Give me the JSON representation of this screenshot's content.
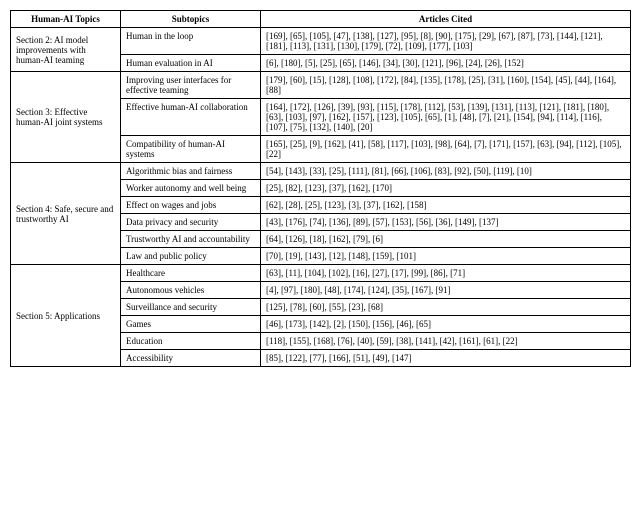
{
  "headers": {
    "topics": "Human-AI Topics",
    "subtopics": "Subtopics",
    "articles": "Articles Cited"
  },
  "sections": [
    {
      "topic": "Section 2: AI model improvements with human-AI teaming",
      "rows": [
        {
          "sub": "Human in the loop",
          "cites": "[169], [65], [105], [47], [138], [127], [95], [8], [90], [175], [29], [67], [87], [73], [144], [121], [181], [113], [131], [130], [179], [72], [109], [177], [103]"
        },
        {
          "sub": "Human evaluation in AI",
          "cites": "[6], [180], [5], [25], [65], [146], [34], [30], [121], [96], [24], [26], [152]"
        }
      ]
    },
    {
      "topic": "Section 3: Effective human-AI joint systems",
      "rows": [
        {
          "sub": "Improving user interfaces for effective teaming",
          "cites": "[179], [60], [15], [128], [108], [172], [84], [135], [178], [25], [31], [160], [154], [45], [44], [164], [88]"
        },
        {
          "sub": "Effective human-AI collaboration",
          "cites": "[164], [172], [126], [39], [93], [115], [178], [112], [53], [139], [131], [113], [121], [181], [180], [63], [103], [97], [162], [157], [123], [105], [65], [1], [48], [7], [21], [154], [94], [114], [116], [107], [75], [132], [140], [20]"
        },
        {
          "sub": "Compatibility of human-AI systems",
          "cites": "[165], [25], [9], [162], [41], [58], [117], [103], [98], [64], [7], [171], [157], [63], [94], [112], [105], [22]"
        }
      ]
    },
    {
      "topic": "Section 4: Safe, secure and trustworthy AI",
      "rows": [
        {
          "sub": "Algorithmic bias and fairness",
          "cites": "[54], [143], [33], [25], [111], [81], [66], [106], [83], [92], [50], [119], [10]"
        },
        {
          "sub": "Worker autonomy and well being",
          "cites": "[25], [82], [123], [37], [162], [170]"
        },
        {
          "sub": "Effect on wages and jobs",
          "cites": "[62], [28], [25], [123], [3], [37], [162], [158]"
        },
        {
          "sub": "Data privacy and security",
          "cites": "[43], [176], [74], [136], [89], [57], [153], [56], [36], [149], [137]"
        },
        {
          "sub": "Trustworthy AI and accountability",
          "cites": "[64], [126], [18], [162], [79], [6]"
        },
        {
          "sub": "Law and public policy",
          "cites": "[70], [19], [143], [12], [148], [159], [101]"
        }
      ]
    },
    {
      "topic": "Section 5: Applications",
      "rows": [
        {
          "sub": "Healthcare",
          "cites": "[63], [11], [104], [102], [16], [27], [17], [99], [86], [71]"
        },
        {
          "sub": "Autonomous vehicles",
          "cites": "[4], [97], [180], [48], [174], [124], [35], [167], [91]"
        },
        {
          "sub": "Surveillance and security",
          "cites": "[125], [78], [60], [55], [23], [68]"
        },
        {
          "sub": "Games",
          "cites": "[46], [173], [142], [2], [150], [156], [46], [65]"
        },
        {
          "sub": "Education",
          "cites": "[118], [155], [168], [76], [40], [59], [38], [141], [42], [161], [61], [22]"
        },
        {
          "sub": "Accessibility",
          "cites": "[85], [122], [77], [166], [51], [49], [147]"
        }
      ]
    }
  ]
}
